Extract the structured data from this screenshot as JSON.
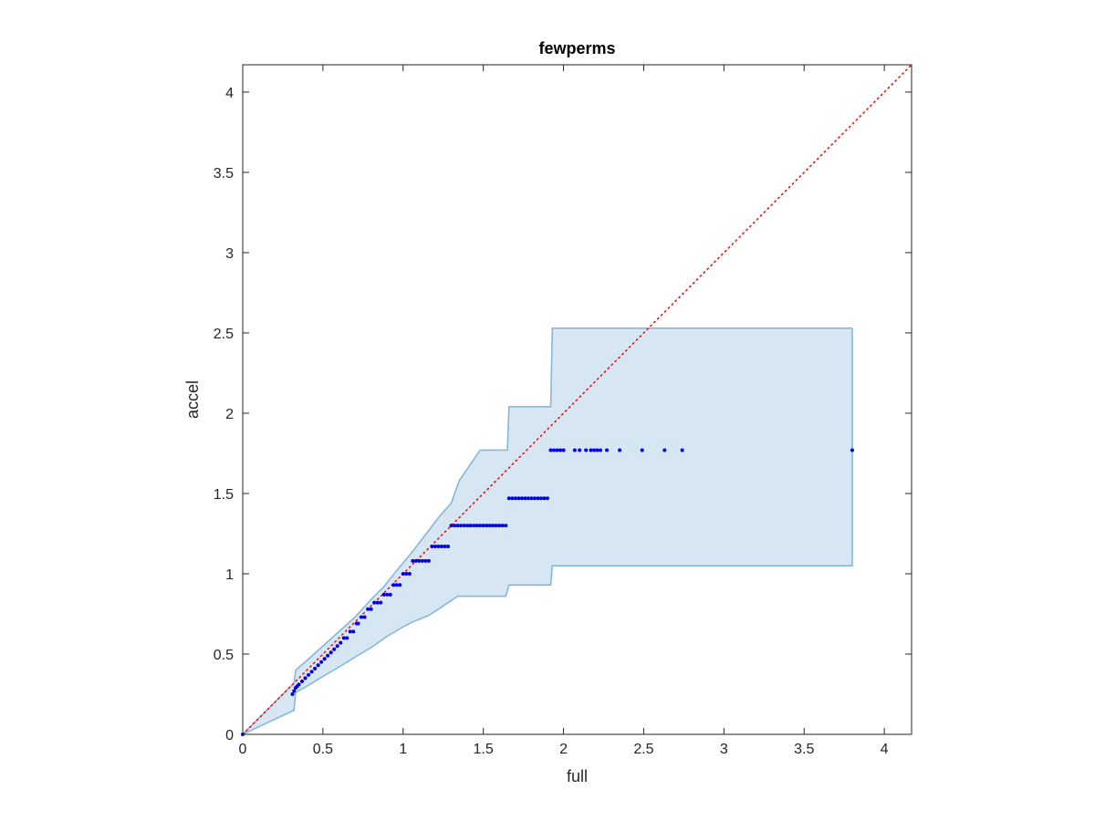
{
  "chart_data": {
    "type": "scatter",
    "title": "fewperms",
    "xlabel": "full",
    "ylabel": "accel",
    "xlim": [
      0,
      4.17
    ],
    "ylim": [
      0,
      4.17
    ],
    "xticks": [
      0,
      0.5,
      1,
      1.5,
      2,
      2.5,
      3,
      3.5,
      4
    ],
    "xtick_labels": [
      "0",
      "0.5",
      "1",
      "1.5",
      "2",
      "2.5",
      "3",
      "3.5",
      "4"
    ],
    "yticks": [
      0,
      0.5,
      1,
      1.5,
      2,
      2.5,
      3,
      3.5,
      4
    ],
    "ytick_labels": [
      "0",
      "0.5",
      "1",
      "1.5",
      "2",
      "2.5",
      "3",
      "3.5",
      "4"
    ],
    "grid": false,
    "colors": {
      "points": "#0000e6",
      "band_fill": "#d6e6f3",
      "band_edge": "#7fb6d9",
      "diagonal": "#ff0000",
      "axes": "#262626"
    },
    "diagonal": {
      "style": "dotted",
      "from": [
        0,
        0
      ],
      "to": [
        4.17,
        4.17
      ]
    },
    "band": {
      "upper": [
        [
          0,
          0
        ],
        [
          0.32,
          0.32
        ],
        [
          0.33,
          0.4
        ],
        [
          0.4,
          0.46
        ],
        [
          0.5,
          0.55
        ],
        [
          0.6,
          0.64
        ],
        [
          0.7,
          0.73
        ],
        [
          0.8,
          0.84
        ],
        [
          0.88,
          0.92
        ],
        [
          0.96,
          1.02
        ],
        [
          1.06,
          1.14
        ],
        [
          1.16,
          1.27
        ],
        [
          1.22,
          1.35
        ],
        [
          1.3,
          1.44
        ],
        [
          1.35,
          1.58
        ],
        [
          1.48,
          1.77
        ],
        [
          1.65,
          1.77
        ],
        [
          1.66,
          2.04
        ],
        [
          1.92,
          2.04
        ],
        [
          1.93,
          2.53
        ],
        [
          3.8,
          2.53
        ]
      ],
      "lower": [
        [
          0,
          0
        ],
        [
          0.32,
          0.15
        ],
        [
          0.33,
          0.26
        ],
        [
          0.4,
          0.3
        ],
        [
          0.5,
          0.36
        ],
        [
          0.6,
          0.42
        ],
        [
          0.7,
          0.48
        ],
        [
          0.8,
          0.54
        ],
        [
          0.9,
          0.61
        ],
        [
          1.0,
          0.67
        ],
        [
          1.06,
          0.7
        ],
        [
          1.16,
          0.74
        ],
        [
          1.22,
          0.78
        ],
        [
          1.28,
          0.82
        ],
        [
          1.34,
          0.86
        ],
        [
          1.64,
          0.86
        ],
        [
          1.66,
          0.93
        ],
        [
          1.92,
          0.93
        ],
        [
          1.93,
          1.05
        ],
        [
          3.8,
          1.05
        ]
      ]
    },
    "series": [
      {
        "x": [
          0,
          0.31,
          0.32,
          0.33,
          0.34,
          0.35,
          0.37,
          0.39,
          0.41,
          0.43,
          0.45,
          0.47,
          0.49,
          0.51,
          0.53,
          0.55,
          0.57,
          0.59,
          0.61,
          0.63,
          0.65,
          0.67,
          0.69,
          0.71,
          0.72,
          0.74,
          0.76,
          0.78,
          0.8,
          0.82,
          0.84,
          0.86,
          0.88,
          0.9,
          0.92,
          0.94,
          0.96,
          0.98,
          1.0,
          1.02,
          1.04,
          1.06,
          1.08,
          1.1,
          1.12,
          1.14,
          1.16,
          1.18,
          1.2,
          1.22,
          1.24,
          1.26,
          1.28,
          1.3,
          1.32,
          1.34,
          1.36,
          1.38,
          1.4,
          1.42,
          1.44,
          1.46,
          1.48,
          1.5,
          1.52,
          1.54,
          1.56,
          1.58,
          1.6,
          1.62,
          1.64,
          1.66,
          1.68,
          1.7,
          1.72,
          1.74,
          1.76,
          1.78,
          1.8,
          1.82,
          1.84,
          1.86,
          1.88,
          1.9,
          1.92,
          1.94,
          1.96,
          1.98,
          2.0,
          2.07,
          2.1,
          2.14,
          2.17,
          2.19,
          2.21,
          2.23,
          2.27,
          2.35,
          2.49,
          2.63,
          2.74,
          3.8
        ],
        "y": [
          0,
          0.25,
          0.27,
          0.29,
          0.3,
          0.31,
          0.33,
          0.35,
          0.37,
          0.39,
          0.41,
          0.43,
          0.45,
          0.47,
          0.49,
          0.51,
          0.53,
          0.55,
          0.57,
          0.6,
          0.6,
          0.64,
          0.64,
          0.69,
          0.69,
          0.73,
          0.73,
          0.78,
          0.78,
          0.82,
          0.82,
          0.82,
          0.87,
          0.87,
          0.87,
          0.93,
          0.93,
          0.93,
          1.0,
          1.0,
          1.0,
          1.08,
          1.08,
          1.08,
          1.08,
          1.08,
          1.08,
          1.17,
          1.17,
          1.17,
          1.17,
          1.17,
          1.17,
          1.3,
          1.3,
          1.3,
          1.3,
          1.3,
          1.3,
          1.3,
          1.3,
          1.3,
          1.3,
          1.3,
          1.3,
          1.3,
          1.3,
          1.3,
          1.3,
          1.3,
          1.3,
          1.47,
          1.47,
          1.47,
          1.47,
          1.47,
          1.47,
          1.47,
          1.47,
          1.47,
          1.47,
          1.47,
          1.47,
          1.47,
          1.77,
          1.77,
          1.77,
          1.77,
          1.77,
          1.77,
          1.77,
          1.77,
          1.77,
          1.77,
          1.77,
          1.77,
          1.77,
          1.77,
          1.77,
          1.77,
          1.77,
          1.77
        ]
      }
    ]
  }
}
